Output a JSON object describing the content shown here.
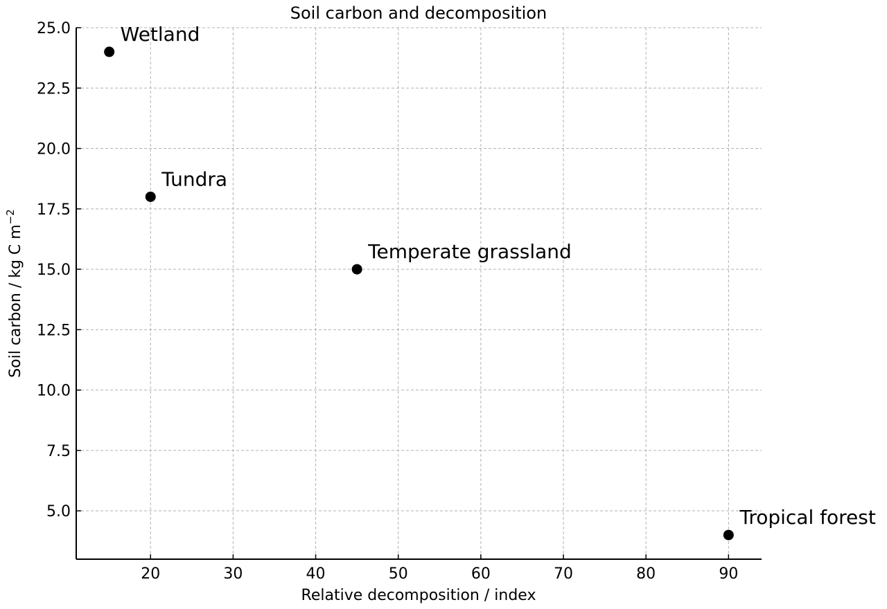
{
  "chart_data": {
    "type": "scatter",
    "title": "Soil carbon and decomposition",
    "xlabel": "Relative decomposition / index",
    "ylabel_main": "Soil carbon / kg C m",
    "ylabel_sup": "−2",
    "xlim": [
      11,
      94
    ],
    "ylim": [
      3,
      25
    ],
    "x_ticks": [
      20,
      30,
      40,
      50,
      60,
      70,
      80,
      90
    ],
    "x_tick_labels": [
      "20",
      "30",
      "40",
      "50",
      "60",
      "70",
      "80",
      "90"
    ],
    "y_ticks": [
      5,
      7.5,
      10,
      12.5,
      15,
      17.5,
      20,
      22.5,
      25
    ],
    "y_tick_labels": [
      "5.0",
      "7.5",
      "10.0",
      "12.5",
      "15.0",
      "17.5",
      "20.0",
      "22.5",
      "25.0"
    ],
    "grid": true,
    "marker_color": "#000000",
    "points": [
      {
        "label": "Wetland",
        "x": 15,
        "y": 24
      },
      {
        "label": "Tundra",
        "x": 20,
        "y": 18
      },
      {
        "label": "Temperate grassland",
        "x": 45,
        "y": 15
      },
      {
        "label": "Tropical forest",
        "x": 90,
        "y": 4
      }
    ]
  }
}
